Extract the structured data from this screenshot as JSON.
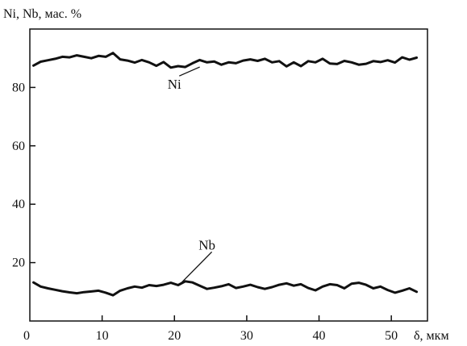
{
  "chart_data": {
    "type": "line",
    "title": "",
    "ylabel": "Ni, Nb, мас. %",
    "xlabel": "δ, мкм",
    "xlim": [
      0,
      55
    ],
    "ylim": [
      0,
      100
    ],
    "grid": false,
    "x_ticks": [
      {
        "value": 0,
        "label": "0"
      },
      {
        "value": 10,
        "label": "10"
      },
      {
        "value": 20,
        "label": "20"
      },
      {
        "value": 30,
        "label": "30"
      },
      {
        "value": 40,
        "label": "40"
      },
      {
        "value": 50,
        "label": "50"
      }
    ],
    "y_ticks": [
      {
        "value": 20,
        "label": "20"
      },
      {
        "value": 40,
        "label": "40"
      },
      {
        "value": 60,
        "label": "60"
      },
      {
        "value": 80,
        "label": "80"
      }
    ],
    "series": [
      {
        "name": "Ni",
        "color": "#111111",
        "x": [
          0.5,
          1.5,
          2.5,
          3.5,
          4.5,
          5.5,
          6.5,
          7.5,
          8.5,
          9.5,
          10.5,
          11.5,
          12.5,
          13.5,
          14.5,
          15.5,
          16.5,
          17.5,
          18.5,
          19.5,
          20.5,
          21.5,
          22.5,
          23.5,
          24.5,
          25.5,
          26.5,
          27.5,
          28.5,
          29.5,
          30.5,
          31.5,
          32.5,
          33.5,
          34.5,
          35.5,
          36.5,
          37.5,
          38.5,
          39.5,
          40.5,
          41.5,
          42.5,
          43.5,
          44.5,
          45.5,
          46.5,
          47.5,
          48.5,
          49.5,
          50.5,
          51.5,
          52.5,
          53.5
        ],
        "y": [
          87.5,
          88.8,
          89.3,
          89.8,
          90.5,
          90.3,
          91,
          90.5,
          90,
          90.8,
          90.5,
          91.8,
          89.6,
          89.2,
          88.5,
          89.4,
          88.6,
          87.4,
          88.7,
          86.8,
          87.3,
          87,
          88.3,
          89.4,
          88.6,
          88.9,
          87.8,
          88.6,
          88.3,
          89.2,
          89.6,
          89.1,
          89.8,
          88.6,
          89,
          87.2,
          88.6,
          87.3,
          89,
          88.6,
          89.8,
          88.2,
          88,
          89.1,
          88.6,
          87.8,
          88.1,
          89,
          88.7,
          89.3,
          88.5,
          90.3,
          89.5,
          90.2
        ]
      },
      {
        "name": "Nb",
        "color": "#111111",
        "x": [
          0.5,
          1.5,
          2.5,
          3.5,
          4.5,
          5.5,
          6.5,
          7.5,
          8.5,
          9.5,
          10.5,
          11.5,
          12.5,
          13.5,
          14.5,
          15.5,
          16.5,
          17.5,
          18.5,
          19.5,
          20.5,
          21.5,
          22.5,
          23.5,
          24.5,
          25.5,
          26.5,
          27.5,
          28.5,
          29.5,
          30.5,
          31.5,
          32.5,
          33.5,
          34.5,
          35.5,
          36.5,
          37.5,
          38.5,
          39.5,
          40.5,
          41.5,
          42.5,
          43.5,
          44.5,
          45.5,
          46.5,
          47.5,
          48.5,
          49.5,
          50.5,
          51.5,
          52.5,
          53.5
        ],
        "y": [
          13.2,
          11.8,
          11.2,
          10.7,
          10.2,
          9.8,
          9.5,
          9.9,
          10.1,
          10.4,
          9.7,
          8.8,
          10.4,
          11.2,
          11.8,
          11.4,
          12.3,
          12,
          12.4,
          13.1,
          12.3,
          13.6,
          13.2,
          12.1,
          11,
          11.4,
          11.9,
          12.6,
          11.3,
          11.8,
          12.4,
          11.6,
          11,
          11.6,
          12.4,
          12.9,
          12.1,
          12.6,
          11.3,
          10.5,
          11.8,
          12.6,
          12.3,
          11.2,
          12.8,
          13.1,
          12.4,
          11.2,
          11.8,
          10.6,
          9.7,
          10.4,
          11.2,
          10
        ]
      }
    ],
    "annotations": [
      {
        "text": "Ni",
        "series": "Ni",
        "at_x": 23.5,
        "at_y": 87,
        "text_x": 20,
        "text_y": 79.5
      },
      {
        "text": "Nb",
        "series": "Nb",
        "at_x": 21,
        "at_y": 13.2,
        "text_x": 24.5,
        "text_y": 24.5
      }
    ]
  }
}
